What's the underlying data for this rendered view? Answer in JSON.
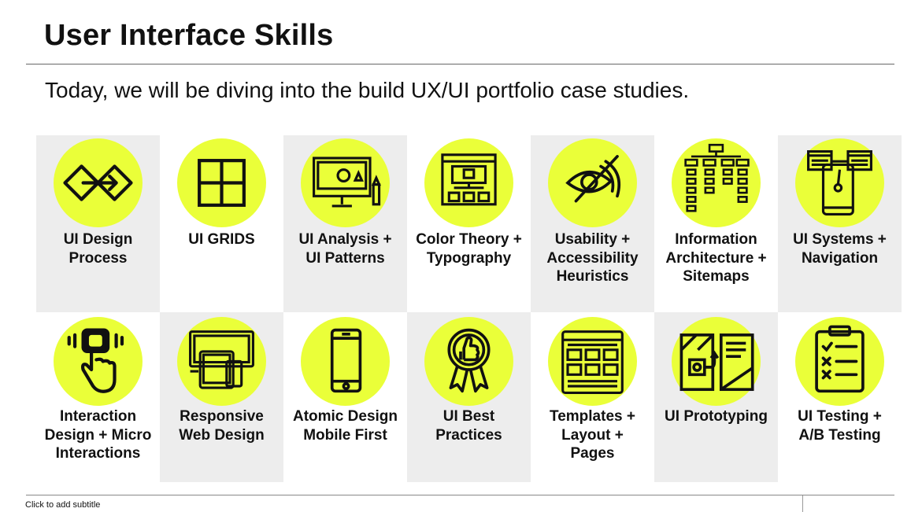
{
  "slide": {
    "title": "User Interface Skills",
    "intro": "Today, we will be diving into the build UX/UI portfolio case studies.",
    "subtitle_placeholder": "Click to add subtitle"
  },
  "colors": {
    "accent": "#eaff39",
    "cell_gray": "#ededed",
    "text": "#111111"
  },
  "tiles": [
    {
      "label": "UI Design\nProcess",
      "icon": "design-process-icon"
    },
    {
      "label": "UI GRIDS",
      "icon": "grid-icon"
    },
    {
      "label": "UI Analysis +\nUI Patterns",
      "icon": "monitor-analysis-icon"
    },
    {
      "label": "Color Theory +\nTypography",
      "icon": "web-layout-icon"
    },
    {
      "label": "Usability +\nAccessibility\nHeuristics",
      "icon": "accessibility-icon"
    },
    {
      "label": "Information\nArchitecture +\nSitemaps",
      "icon": "sitemap-icon"
    },
    {
      "label": "UI Systems +\nNavigation",
      "icon": "mobile-navigation-icon"
    },
    {
      "label": "Interaction\nDesign + Micro\nInteractions",
      "icon": "tap-gesture-icon"
    },
    {
      "label": "Responsive\nWeb Design",
      "icon": "responsive-devices-icon"
    },
    {
      "label": "Atomic Design\nMobile First",
      "icon": "smartphone-icon"
    },
    {
      "label": "UI Best\nPractices",
      "icon": "award-thumbs-up-icon"
    },
    {
      "label": "Templates +\nLayout +\nPages",
      "icon": "template-layout-icon"
    },
    {
      "label": "UI Prototyping",
      "icon": "prototype-flow-icon"
    },
    {
      "label": "UI Testing +\nA/B Testing",
      "icon": "clipboard-checklist-icon"
    }
  ]
}
